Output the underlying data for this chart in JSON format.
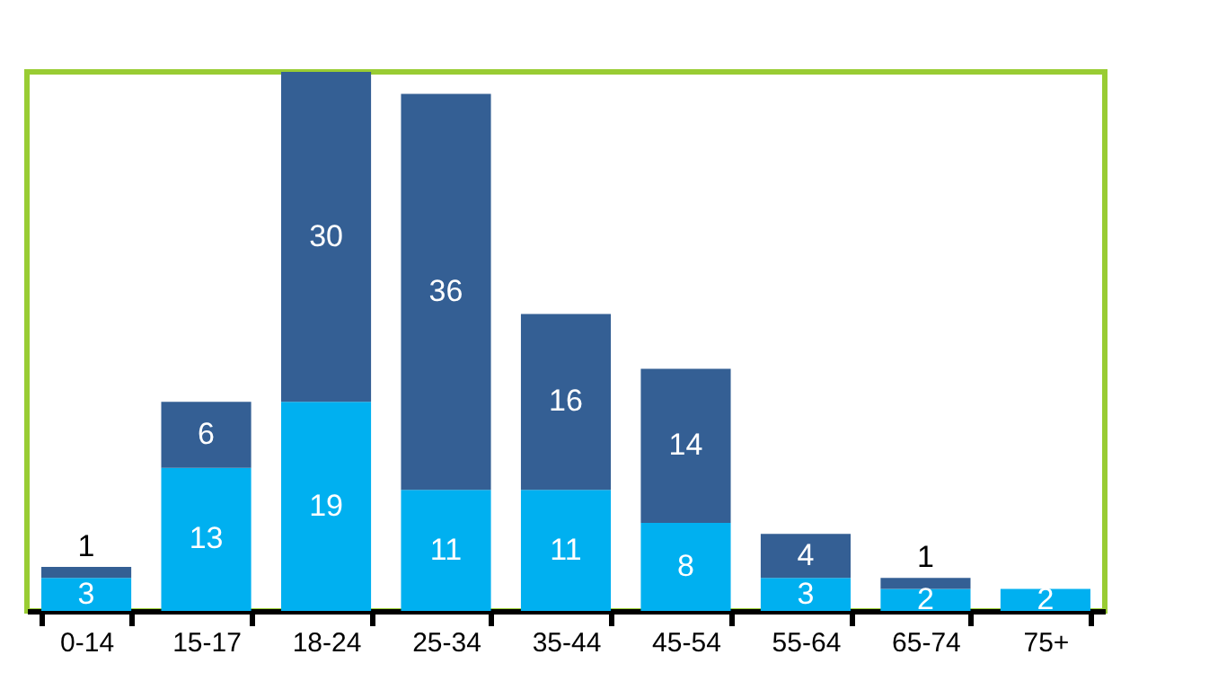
{
  "chart_data": {
    "type": "bar",
    "stacked": true,
    "data_labels": true,
    "categories": [
      "0-14",
      "15-17",
      "18-24",
      "25-34",
      "35-44",
      "45-54",
      "55-64",
      "65-74",
      "75+"
    ],
    "series": [
      {
        "color": "#00b0f0",
        "values": [
          3,
          13,
          19,
          11,
          11,
          8,
          3,
          2,
          2
        ]
      },
      {
        "color": "#345f94",
        "values": [
          1,
          6,
          30,
          36,
          16,
          14,
          4,
          1,
          null
        ]
      }
    ]
  }
}
